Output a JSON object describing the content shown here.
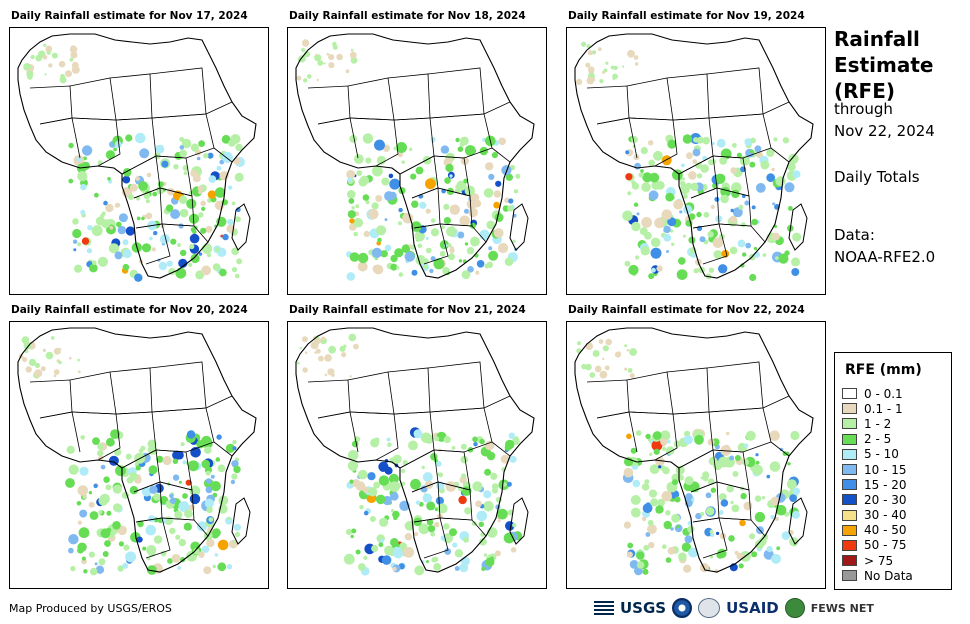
{
  "panels": [
    {
      "title": "Daily Rainfall estimate for Nov 17, 2024"
    },
    {
      "title": "Daily Rainfall estimate for Nov 18, 2024"
    },
    {
      "title": "Daily Rainfall estimate for Nov 19, 2024"
    },
    {
      "title": "Daily Rainfall estimate for Nov 20, 2024"
    },
    {
      "title": "Daily Rainfall estimate for Nov 21, 2024"
    },
    {
      "title": "Daily Rainfall estimate for Nov 22, 2024"
    }
  ],
  "sidebar": {
    "title_line1": "Rainfall",
    "title_line2": "Estimate",
    "title_line3": "(RFE)",
    "through": "through",
    "date": "Nov 22, 2024",
    "totals": "Daily Totals",
    "data_label": "Data:",
    "data_source": "NOAA-RFE2.0"
  },
  "legend": {
    "title": "RFE (mm)",
    "items": [
      {
        "label": "0 - 0.1",
        "color": "#ffffff"
      },
      {
        "label": "0.1 - 1",
        "color": "#e8d9bc"
      },
      {
        "label": "1 - 2",
        "color": "#b6f0a6"
      },
      {
        "label": "2 - 5",
        "color": "#66dd55"
      },
      {
        "label": "5 - 10",
        "color": "#b0ecf7"
      },
      {
        "label": "10 - 15",
        "color": "#7fb9f0"
      },
      {
        "label": "15 - 20",
        "color": "#3f8fe6"
      },
      {
        "label": "20 - 30",
        "color": "#1450c8"
      },
      {
        "label": "30 - 40",
        "color": "#f7e08a"
      },
      {
        "label": "40 - 50",
        "color": "#f5a300"
      },
      {
        "label": "50 - 75",
        "color": "#ef3a10"
      },
      {
        "label": "> 75",
        "color": "#a01818"
      },
      {
        "label": "No Data",
        "color": "#999999"
      }
    ]
  },
  "footer": {
    "credit": "Map Produced by USGS/EROS"
  },
  "logos": {
    "usgs": "USGS",
    "usaid": "USAID",
    "fews": "FEWS NET"
  }
}
